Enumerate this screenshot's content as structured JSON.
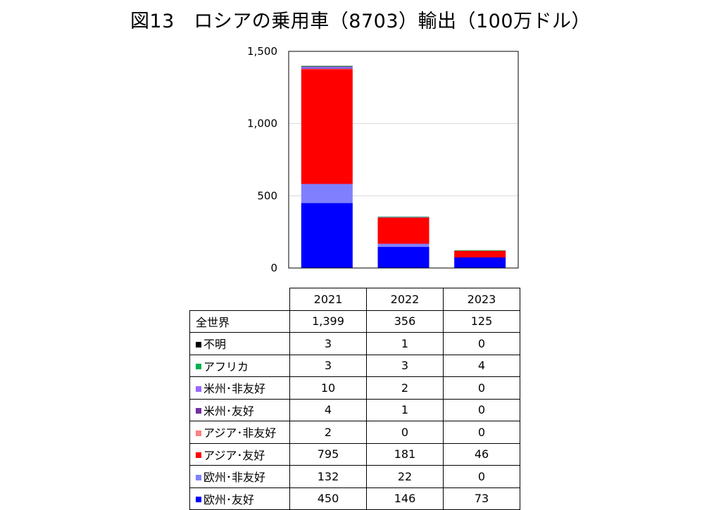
{
  "title": "図13　ロシアの乗用車（8703）輸出（100万ドル）",
  "chart_data": {
    "type": "bar",
    "stacked": true,
    "categories": [
      "2021",
      "2022",
      "2023"
    ],
    "ylim": [
      0,
      1500
    ],
    "yticks": [
      0,
      500,
      1000,
      1500
    ],
    "ytick_labels": [
      "0",
      "500",
      "1,000",
      "1,500"
    ],
    "grid": true,
    "total_row": {
      "label": "全世界",
      "values": [
        "1,399",
        "356",
        "125"
      ]
    },
    "series": [
      {
        "name": "欧州･友好",
        "values": [
          450,
          146,
          73
        ],
        "color": "#0000FF"
      },
      {
        "name": "欧州･非友好",
        "values": [
          132,
          22,
          0
        ],
        "color": "#8080FF"
      },
      {
        "name": "アジア･友好",
        "values": [
          795,
          181,
          46
        ],
        "color": "#FF0000"
      },
      {
        "name": "アジア･非友好",
        "values": [
          2,
          0,
          0
        ],
        "color": "#FF8080"
      },
      {
        "name": "米州･友好",
        "values": [
          4,
          1,
          0
        ],
        "color": "#7030A0"
      },
      {
        "name": "米州･非友好",
        "values": [
          10,
          2,
          0
        ],
        "color": "#9966FF"
      },
      {
        "name": "アフリカ",
        "values": [
          3,
          3,
          4
        ],
        "color": "#00B050"
      },
      {
        "name": "不明",
        "values": [
          3,
          1,
          0
        ],
        "color": "#000000"
      }
    ],
    "legend_placement": "table-left"
  }
}
